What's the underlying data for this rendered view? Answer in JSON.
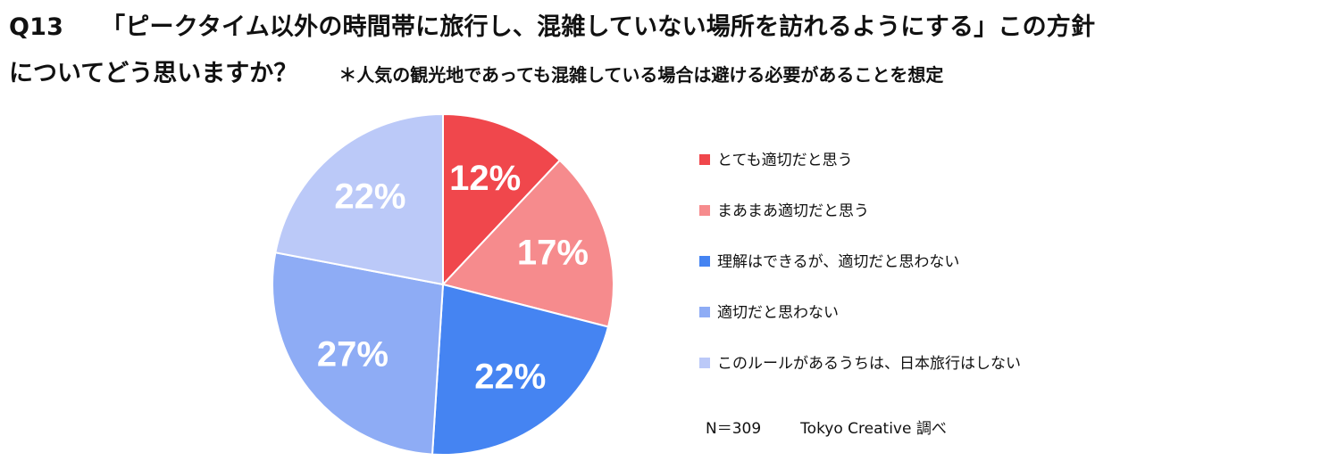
{
  "title": {
    "question_no": "Q13",
    "line1": "「ピークタイム以外の時間帯に旅行し、混雑していない場所を訪れるようにする」この方針",
    "line2": "についてどう思いますか？",
    "note": "＊人気の観光地であっても混雑している場合は避ける必要があることを想定"
  },
  "chart_data": {
    "type": "pie",
    "start": "top (12 o'clock), clockwise",
    "slices": [
      {
        "label": "とても適切だと思う",
        "value": 12,
        "display": "12%",
        "color": "#f0474c"
      },
      {
        "label": "まあまあ適切だと思う",
        "value": 17,
        "display": "17%",
        "color": "#f68b8d"
      },
      {
        "label": "理解はできるが、適切だと思わない",
        "value": 22,
        "display": "22%",
        "color": "#4584f2"
      },
      {
        "label": "適切だと思わない",
        "value": 27,
        "display": "27%",
        "color": "#8eacf5"
      },
      {
        "label": "このルールがあるうちは、日本旅行はしない",
        "value": 22,
        "display": "22%",
        "color": "#bbc9f8"
      }
    ],
    "legend_position": "right"
  },
  "footer": {
    "sample": "N＝309",
    "credit": "Tokyo Creative  調べ"
  }
}
